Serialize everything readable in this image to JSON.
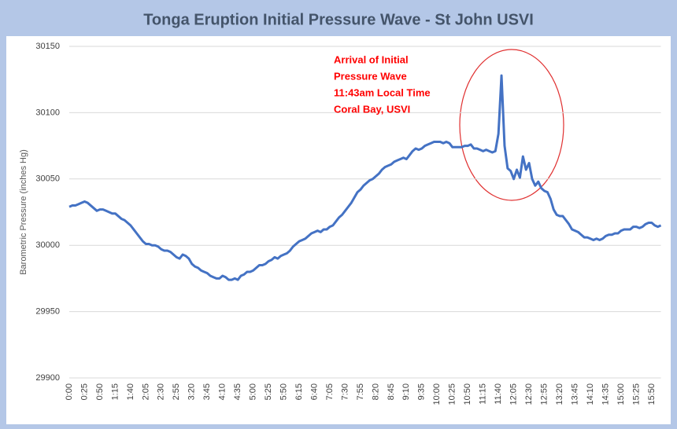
{
  "chart_data": {
    "type": "line",
    "title": "Tonga Eruption Initial Pressure Wave - St John USVI",
    "y_label": "Barometric Pressure (inches Hg)",
    "annotation": [
      "Arrival of Initial",
      "Pressure Wave",
      "11:43am Local Time",
      "Coral Bay, USVI"
    ],
    "color": "#4472c4",
    "grid": true,
    "ylim": [
      29900,
      30150
    ],
    "yticks": [
      29900,
      29950,
      30000,
      30050,
      30100,
      30150
    ],
    "categories": [
      "0:00",
      null,
      null,
      null,
      null,
      "0:25",
      null,
      null,
      null,
      null,
      "0:50",
      null,
      null,
      null,
      null,
      "1:15",
      null,
      null,
      null,
      null,
      "1:40",
      null,
      null,
      null,
      null,
      "2:05",
      null,
      null,
      null,
      null,
      "2:30",
      null,
      null,
      null,
      null,
      "2:55",
      null,
      null,
      null,
      null,
      "3:20",
      null,
      null,
      null,
      null,
      "3:45",
      null,
      null,
      null,
      null,
      "4:10",
      null,
      null,
      null,
      null,
      "4:35",
      null,
      null,
      null,
      null,
      "5:00",
      null,
      null,
      null,
      null,
      "5:25",
      null,
      null,
      null,
      null,
      "5:50",
      null,
      null,
      null,
      null,
      "6:15",
      null,
      null,
      null,
      null,
      "6:40",
      null,
      null,
      null,
      null,
      "7:05",
      null,
      null,
      null,
      null,
      "7:30",
      null,
      null,
      null,
      null,
      "7:55",
      null,
      null,
      null,
      null,
      "8:20",
      null,
      null,
      null,
      null,
      "8:45",
      null,
      null,
      null,
      null,
      "9:10",
      null,
      null,
      null,
      null,
      "9:35",
      null,
      null,
      null,
      null,
      "10:00",
      null,
      null,
      null,
      null,
      "10:25",
      null,
      null,
      null,
      null,
      "10:50",
      null,
      null,
      null,
      null,
      "11:15",
      null,
      null,
      null,
      null,
      "11:40",
      null,
      null,
      null,
      null,
      "12:05",
      null,
      null,
      null,
      null,
      "12:30",
      null,
      null,
      null,
      null,
      "12:55",
      null,
      null,
      null,
      null,
      "13:20",
      null,
      null,
      null,
      null,
      "13:45",
      null,
      null,
      null,
      null,
      "14:10",
      null,
      null,
      null,
      null,
      "14:35",
      null,
      null,
      null,
      null,
      "15:00",
      null,
      null,
      null,
      null,
      "15:25",
      null,
      null,
      null,
      null,
      "15:50",
      null,
      null,
      null
    ],
    "values": [
      30029,
      30030,
      30030,
      30031,
      30032,
      30033,
      30032,
      30030,
      30028,
      30026,
      30027,
      30027,
      30026,
      30025,
      30024,
      30024,
      30022,
      30020,
      30019,
      30017,
      30015,
      30012,
      30009,
      30006,
      30003,
      30001,
      30001,
      30000,
      30000,
      29999,
      29997,
      29996,
      29996,
      29995,
      29993,
      29991,
      29990,
      29993,
      29992,
      29990,
      29986,
      29984,
      29983,
      29981,
      29980,
      29979,
      29977,
      29976,
      29975,
      29975,
      29977,
      29976,
      29974,
      29974,
      29975,
      29974,
      29977,
      29978,
      29980,
      29980,
      29981,
      29983,
      29985,
      29985,
      29986,
      29988,
      29989,
      29991,
      29990,
      29992,
      29993,
      29994,
      29996,
      29999,
      30001,
      30003,
      30004,
      30005,
      30007,
      30009,
      30010,
      30011,
      30010,
      30012,
      30012,
      30014,
      30015,
      30018,
      30021,
      30023,
      30026,
      30029,
      30032,
      30036,
      30040,
      30042,
      30045,
      30047,
      30049,
      30050,
      30052,
      30054,
      30057,
      30059,
      30060,
      30061,
      30063,
      30064,
      30065,
      30066,
      30065,
      30068,
      30071,
      30073,
      30072,
      30073,
      30075,
      30076,
      30077,
      30078,
      30078,
      30078,
      30077,
      30078,
      30077,
      30074,
      30074,
      30074,
      30074,
      30075,
      30075,
      30076,
      30073,
      30073,
      30072,
      30071,
      30072,
      30071,
      30070,
      30071,
      30084,
      30128,
      30075,
      30058,
      30056,
      30050,
      30057,
      30051,
      30067,
      30057,
      30062,
      30050,
      30045,
      30048,
      30043,
      30041,
      30040,
      30035,
      30027,
      30023,
      30022,
      30022,
      30019,
      30016,
      30012,
      30011,
      30010,
      30008,
      30006,
      30006,
      30005,
      30004,
      30005,
      30004,
      30005,
      30007,
      30008,
      30008,
      30009,
      30009,
      30011,
      30012,
      30012,
      30012,
      30014,
      30014,
      30013,
      30014,
      30016,
      30017,
      30017,
      30015,
      30014,
      30015
    ]
  }
}
